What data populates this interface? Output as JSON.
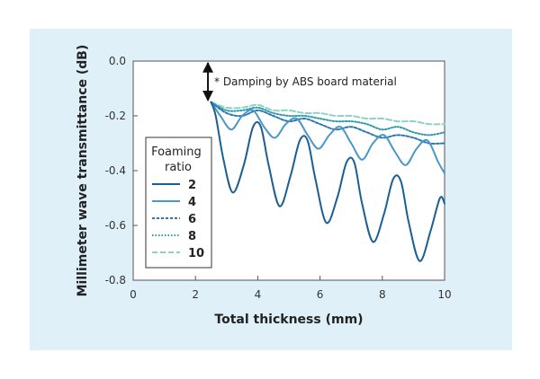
{
  "chart_data": {
    "type": "line",
    "title": "",
    "xlabel": "Total thickness (mm)",
    "ylabel": "Millimeter wave transmittance  (dB)",
    "xlim": [
      0,
      10
    ],
    "ylim": [
      -0.8,
      0.0
    ],
    "x_ticks": [
      "0",
      "2",
      "4",
      "6",
      "8",
      "10"
    ],
    "y_ticks": [
      "0.0",
      "-0.2",
      "-0.4",
      "-0.6",
      "-0.8"
    ],
    "annotation": "* Damping by ABS board material",
    "annotation_range": [
      0.0,
      -0.15
    ],
    "legend": {
      "title": "Foaming ratio",
      "position": "center-left"
    },
    "series": [
      {
        "name": "2",
        "color": "#1a5f94",
        "dash": "solid",
        "x": [
          2.5,
          2.65,
          2.9,
          3.2,
          3.55,
          3.85,
          4.1,
          4.35,
          4.7,
          5.05,
          5.35,
          5.6,
          5.85,
          6.2,
          6.55,
          6.85,
          7.1,
          7.35,
          7.7,
          8.05,
          8.35,
          8.6,
          8.85,
          9.2,
          9.55,
          9.85,
          10.0
        ],
        "y": [
          -0.15,
          -0.2,
          -0.36,
          -0.48,
          -0.38,
          -0.24,
          -0.24,
          -0.38,
          -0.53,
          -0.42,
          -0.29,
          -0.29,
          -0.43,
          -0.59,
          -0.5,
          -0.37,
          -0.37,
          -0.52,
          -0.66,
          -0.56,
          -0.43,
          -0.44,
          -0.59,
          -0.73,
          -0.62,
          -0.5,
          -0.52
        ]
      },
      {
        "name": "4",
        "color": "#4a97c9",
        "dash": "solid",
        "x": [
          2.5,
          2.8,
          3.15,
          3.5,
          3.85,
          4.2,
          4.55,
          4.9,
          5.25,
          5.6,
          5.95,
          6.3,
          6.65,
          7.0,
          7.35,
          7.7,
          8.05,
          8.4,
          8.75,
          9.1,
          9.45,
          9.8,
          10.0
        ],
        "y": [
          -0.15,
          -0.2,
          -0.25,
          -0.2,
          -0.18,
          -0.24,
          -0.28,
          -0.23,
          -0.21,
          -0.27,
          -0.32,
          -0.27,
          -0.24,
          -0.3,
          -0.36,
          -0.3,
          -0.27,
          -0.33,
          -0.38,
          -0.32,
          -0.29,
          -0.37,
          -0.41
        ]
      },
      {
        "name": "6",
        "color": "#2f77b0",
        "dash": "3,2",
        "x": [
          2.5,
          3.0,
          3.5,
          4.0,
          4.5,
          5.0,
          5.5,
          6.0,
          6.5,
          7.0,
          7.5,
          8.0,
          8.5,
          9.0,
          9.5,
          10.0
        ],
        "y": [
          -0.15,
          -0.19,
          -0.2,
          -0.18,
          -0.2,
          -0.22,
          -0.21,
          -0.23,
          -0.25,
          -0.24,
          -0.26,
          -0.28,
          -0.27,
          -0.28,
          -0.3,
          -0.3
        ]
      },
      {
        "name": "8",
        "color": "#2e9aa8",
        "dash": "1.5,2",
        "x": [
          2.5,
          3.0,
          3.5,
          4.0,
          4.5,
          5.0,
          5.5,
          6.0,
          6.5,
          7.0,
          7.5,
          8.0,
          8.5,
          9.0,
          9.5,
          10.0
        ],
        "y": [
          -0.15,
          -0.18,
          -0.18,
          -0.17,
          -0.19,
          -0.2,
          -0.2,
          -0.21,
          -0.22,
          -0.22,
          -0.23,
          -0.25,
          -0.24,
          -0.26,
          -0.27,
          -0.26
        ]
      },
      {
        "name": "10",
        "color": "#8cd3c3",
        "dash": "6,3",
        "x": [
          2.5,
          3.0,
          3.5,
          4.0,
          4.5,
          5.0,
          5.5,
          6.0,
          6.5,
          7.0,
          7.5,
          8.0,
          8.5,
          9.0,
          9.5,
          10.0
        ],
        "y": [
          -0.15,
          -0.17,
          -0.17,
          -0.16,
          -0.18,
          -0.18,
          -0.19,
          -0.19,
          -0.2,
          -0.2,
          -0.21,
          -0.21,
          -0.22,
          -0.22,
          -0.23,
          -0.23
        ]
      }
    ]
  }
}
